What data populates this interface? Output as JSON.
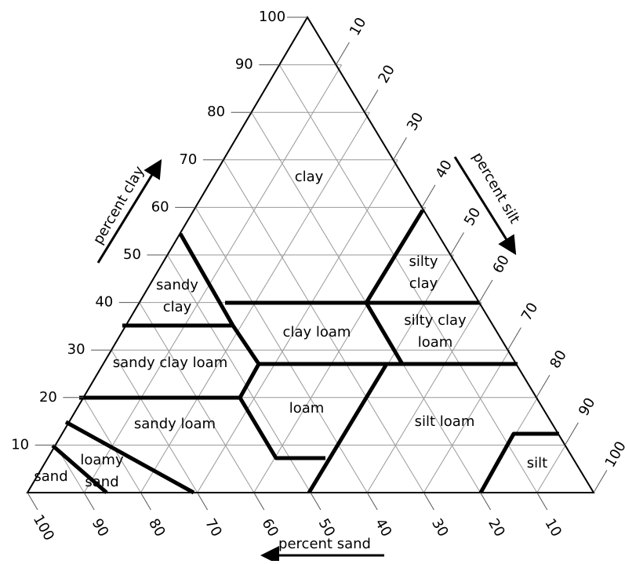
{
  "diagram": {
    "clay_axis": {
      "label": "percent clay",
      "ticks": [
        "10",
        "20",
        "30",
        "40",
        "50",
        "60",
        "70",
        "80",
        "90",
        "100"
      ]
    },
    "silt_axis": {
      "label": "percent silt",
      "ticks": [
        "10",
        "20",
        "30",
        "40",
        "50",
        "60",
        "70",
        "80",
        "90",
        "100"
      ]
    },
    "sand_axis": {
      "label": "percent sand",
      "ticks": [
        "100",
        "90",
        "80",
        "70",
        "60",
        "50",
        "40",
        "30",
        "20",
        "10"
      ]
    },
    "regions": [
      {
        "lines": [
          "clay"
        ]
      },
      {
        "lines": [
          "silty",
          "clay"
        ]
      },
      {
        "lines": [
          "sandy",
          "clay"
        ]
      },
      {
        "lines": [
          "clay loam"
        ]
      },
      {
        "lines": [
          "silty clay",
          "loam"
        ]
      },
      {
        "lines": [
          "sandy clay loam"
        ]
      },
      {
        "lines": [
          "loam"
        ]
      },
      {
        "lines": [
          "sandy loam"
        ]
      },
      {
        "lines": [
          "silt loam"
        ]
      },
      {
        "lines": [
          "loamy",
          "sand"
        ]
      },
      {
        "lines": [
          "sand"
        ]
      },
      {
        "lines": [
          "silt"
        ]
      }
    ]
  }
}
